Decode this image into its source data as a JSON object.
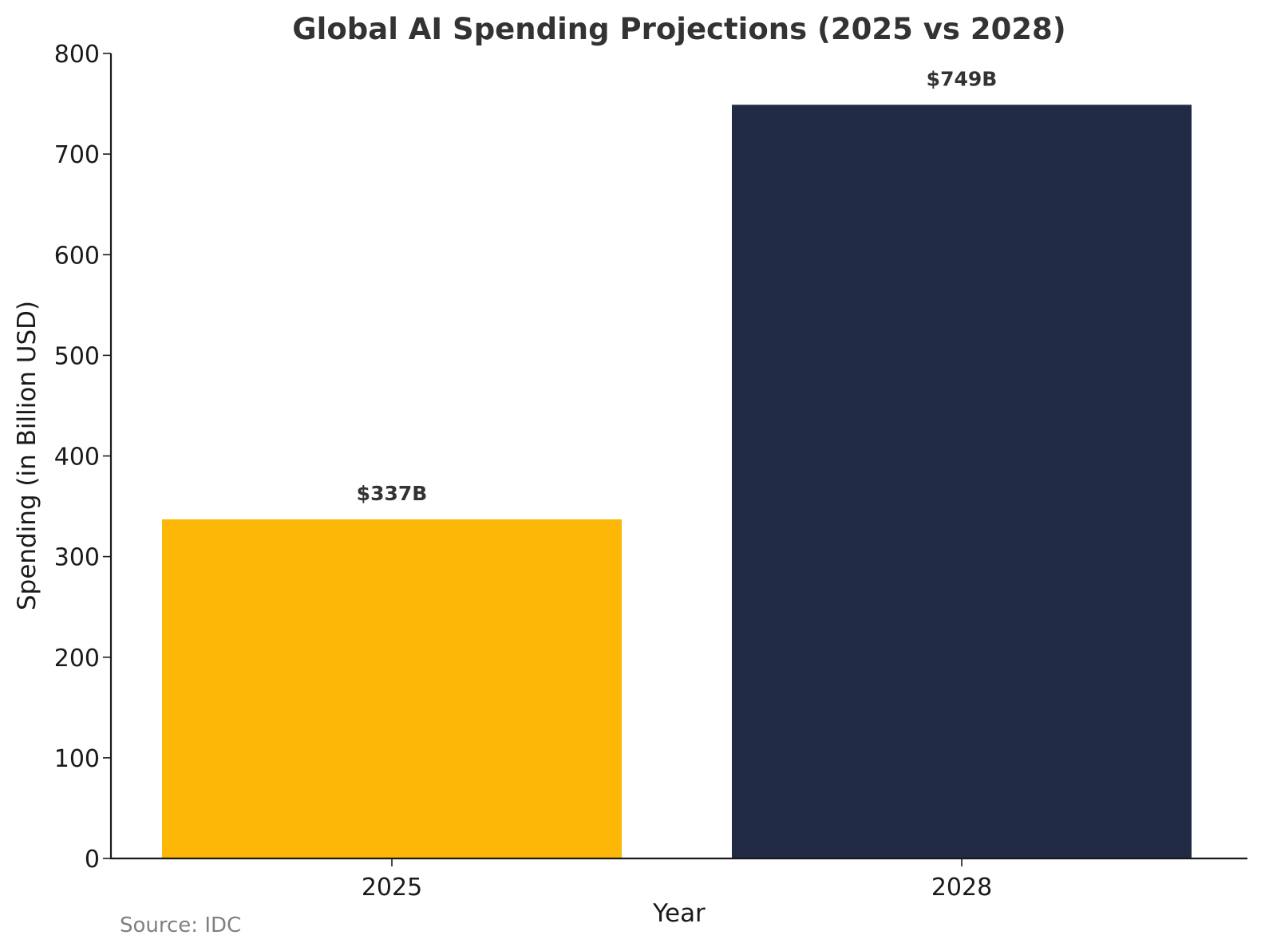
{
  "chart_data": {
    "type": "bar",
    "title": "Global AI Spending Projections (2025 vs 2028)",
    "xlabel": "Year",
    "ylabel": "Spending (in Billion USD)",
    "categories": [
      "2025",
      "2028"
    ],
    "values": [
      337,
      749
    ],
    "data_labels": [
      "$337B",
      "$749B"
    ],
    "bar_colors": [
      "#FDB706",
      "#222B45"
    ],
    "ylim": [
      0,
      800
    ],
    "yticks": [
      0,
      100,
      200,
      300,
      400,
      500,
      600,
      700,
      800
    ],
    "ytick_labels": [
      "0",
      "100",
      "200",
      "300",
      "400",
      "500",
      "600",
      "700",
      "800"
    ],
    "grid": false,
    "legend": "none"
  },
  "footer": {
    "source": "Source: IDC"
  }
}
